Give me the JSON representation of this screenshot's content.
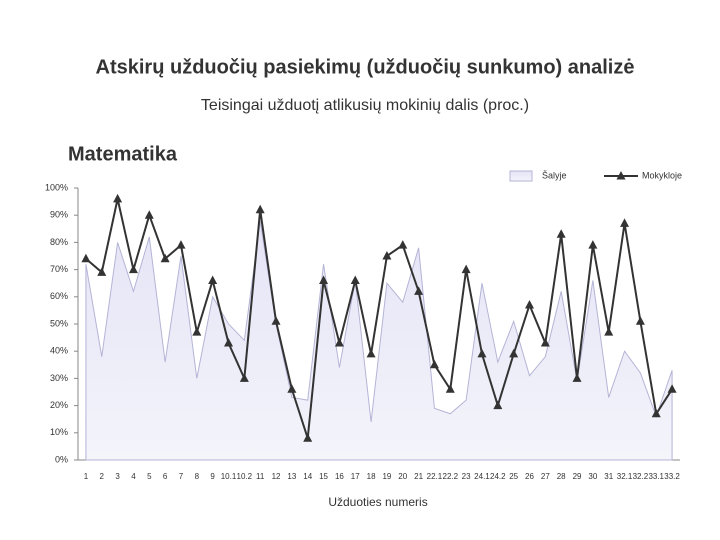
{
  "chart_data": {
    "type": "line",
    "title": "Atskirų užduočių pasiekimų (užduočių sunkumo) analizė",
    "subtitle": "Teisingai užduotį atlikusių mokinių dalis (proc.)",
    "section": "Matematika",
    "x_label": "Užduoties numeris",
    "categories": [
      "1",
      "2",
      "3",
      "4",
      "5",
      "6",
      "7",
      "8",
      "9",
      "10.1",
      "10.2",
      "11",
      "12",
      "13",
      "14",
      "15",
      "16",
      "17",
      "18",
      "19",
      "20",
      "21",
      "22.1",
      "22.2",
      "23",
      "24.1",
      "24.2",
      "25",
      "26",
      "27",
      "28",
      "29",
      "30",
      "31",
      "32.1",
      "32.2",
      "33.1",
      "33.2"
    ],
    "series": [
      {
        "name": "Šalyje",
        "style": "area",
        "color": "#d6d6ee",
        "values": [
          72,
          38,
          80,
          62,
          82,
          36,
          75,
          30,
          60,
          50,
          44,
          88,
          50,
          23,
          22,
          72,
          34,
          66,
          14,
          65,
          58,
          78,
          19,
          17,
          22,
          65,
          36,
          51,
          31,
          38,
          62,
          29,
          66,
          23,
          40,
          32,
          16,
          33
        ]
      },
      {
        "name": "Mokykloje",
        "style": "line",
        "color": "#333333",
        "values": [
          74,
          69,
          96,
          70,
          90,
          74,
          79,
          47,
          66,
          43,
          30,
          92,
          51,
          26,
          8,
          66,
          43,
          66,
          39,
          75,
          79,
          62,
          35,
          26,
          70,
          39,
          20,
          39,
          57,
          43,
          83,
          30,
          79,
          47,
          87,
          51,
          17,
          26
        ]
      }
    ],
    "ylim": [
      0,
      100
    ],
    "yticks": [
      {
        "value": 0,
        "label": "0%"
      },
      {
        "value": 10,
        "label": "10%"
      },
      {
        "value": 20,
        "label": "20%"
      },
      {
        "value": 30,
        "label": "30%"
      },
      {
        "value": 40,
        "label": "40%"
      },
      {
        "value": 50,
        "label": "50%"
      },
      {
        "value": 60,
        "label": "60%"
      },
      {
        "value": 70,
        "label": "70%"
      },
      {
        "value": 80,
        "label": "80%"
      },
      {
        "value": 90,
        "label": "90%"
      },
      {
        "value": 100,
        "label": "100%"
      }
    ],
    "legend": "top-right"
  }
}
